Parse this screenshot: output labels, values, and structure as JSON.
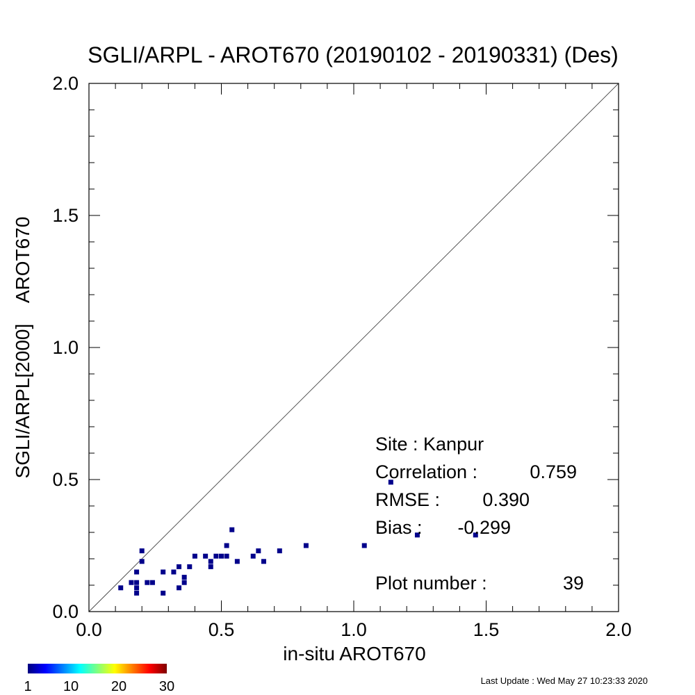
{
  "chart_data": {
    "type": "scatter",
    "title": "SGLI/ARPL - AROT670 (20190102 - 20190331) (Des)",
    "xlabel": "in-situ AROT670",
    "ylabel": "SGLI/ARPL[2000]    AROT670",
    "xlim": [
      0.0,
      2.0
    ],
    "ylim": [
      0.0,
      2.0
    ],
    "x_ticks": [
      "0.0",
      "0.5",
      "1.0",
      "1.5",
      "2.0"
    ],
    "y_ticks": [
      "0.0",
      "0.5",
      "1.0",
      "1.5",
      "2.0"
    ],
    "reference_line": "1:1",
    "grid": false,
    "marker_color": "#00008b",
    "points": [
      {
        "x": 0.12,
        "y": 0.09
      },
      {
        "x": 0.16,
        "y": 0.11
      },
      {
        "x": 0.18,
        "y": 0.09
      },
      {
        "x": 0.18,
        "y": 0.11
      },
      {
        "x": 0.18,
        "y": 0.15
      },
      {
        "x": 0.18,
        "y": 0.07
      },
      {
        "x": 0.2,
        "y": 0.23
      },
      {
        "x": 0.2,
        "y": 0.19
      },
      {
        "x": 0.22,
        "y": 0.11
      },
      {
        "x": 0.24,
        "y": 0.11
      },
      {
        "x": 0.28,
        "y": 0.15
      },
      {
        "x": 0.28,
        "y": 0.07
      },
      {
        "x": 0.32,
        "y": 0.15
      },
      {
        "x": 0.34,
        "y": 0.17
      },
      {
        "x": 0.34,
        "y": 0.09
      },
      {
        "x": 0.36,
        "y": 0.13
      },
      {
        "x": 0.36,
        "y": 0.11
      },
      {
        "x": 0.38,
        "y": 0.17
      },
      {
        "x": 0.4,
        "y": 0.21
      },
      {
        "x": 0.44,
        "y": 0.21
      },
      {
        "x": 0.46,
        "y": 0.19
      },
      {
        "x": 0.46,
        "y": 0.17
      },
      {
        "x": 0.48,
        "y": 0.21
      },
      {
        "x": 0.5,
        "y": 0.21
      },
      {
        "x": 0.52,
        "y": 0.21
      },
      {
        "x": 0.52,
        "y": 0.25
      },
      {
        "x": 0.54,
        "y": 0.31
      },
      {
        "x": 0.56,
        "y": 0.19
      },
      {
        "x": 0.62,
        "y": 0.21
      },
      {
        "x": 0.64,
        "y": 0.23
      },
      {
        "x": 0.66,
        "y": 0.19
      },
      {
        "x": 0.72,
        "y": 0.23
      },
      {
        "x": 0.82,
        "y": 0.25
      },
      {
        "x": 1.04,
        "y": 0.25
      },
      {
        "x": 1.14,
        "y": 0.49
      },
      {
        "x": 1.24,
        "y": 0.29
      },
      {
        "x": 1.46,
        "y": 0.29
      }
    ]
  },
  "stats": {
    "site_label": "Site : Kanpur",
    "correlation_label": "Correlation :",
    "correlation_value": "0.759",
    "rmse_label": "RMSE :",
    "rmse_value": "0.390",
    "bias_label": "Bias :",
    "bias_value": "-0.299",
    "plot_number_label": "Plot number :",
    "plot_number_value": "39"
  },
  "colorbar": {
    "colors": [
      "#00007f",
      "#0000ff",
      "#007fff",
      "#00ffff",
      "#7fff7f",
      "#ffff00",
      "#ff7f00",
      "#ff0000",
      "#7f0000"
    ],
    "ticks": [
      "1",
      "10",
      "20",
      "30"
    ],
    "tick_values": [
      1,
      10,
      20,
      30
    ],
    "range": [
      1,
      30
    ]
  },
  "footer": {
    "last_update": "Last Update : Wed May 27 10:23:33 2020"
  }
}
